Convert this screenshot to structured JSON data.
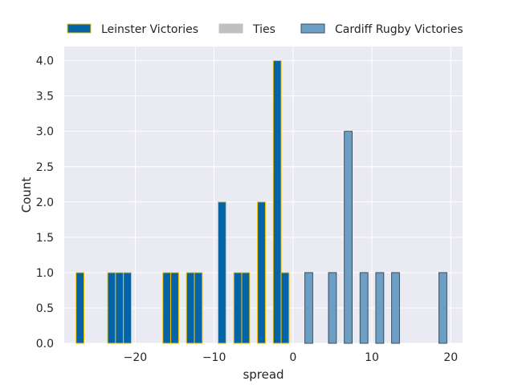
{
  "chart_data": {
    "type": "bar",
    "title": "",
    "xlabel": "spread",
    "ylabel": "Count",
    "xlim": [
      -29,
      21.5
    ],
    "ylim": [
      0,
      4.2
    ],
    "bar_width": 1,
    "grid": true,
    "legend_placement": "top",
    "x_ticks": [
      -20,
      -10,
      0,
      10,
      20
    ],
    "x_tick_labels": [
      "−20",
      "−10",
      "0",
      "10",
      "20"
    ],
    "y_ticks": [
      0,
      0.5,
      1,
      1.5,
      2,
      2.5,
      3,
      3.5,
      4
    ],
    "y_tick_labels": [
      "0.0",
      "0.5",
      "1.0",
      "1.5",
      "2.0",
      "2.5",
      "3.0",
      "3.5",
      "4.0"
    ],
    "series": [
      {
        "name": "Leinster Victories",
        "fill": "#0563a8",
        "edge": "#f2c300",
        "points": [
          {
            "x": -27,
            "y": 1
          },
          {
            "x": -23,
            "y": 1
          },
          {
            "x": -22,
            "y": 1
          },
          {
            "x": -21,
            "y": 1
          },
          {
            "x": -16,
            "y": 1
          },
          {
            "x": -15,
            "y": 1
          },
          {
            "x": -13,
            "y": 1
          },
          {
            "x": -12,
            "y": 1
          },
          {
            "x": -9,
            "y": 2
          },
          {
            "x": -7,
            "y": 1
          },
          {
            "x": -6,
            "y": 1
          },
          {
            "x": -4,
            "y": 2
          },
          {
            "x": -2,
            "y": 4
          },
          {
            "x": -1,
            "y": 1
          }
        ]
      },
      {
        "name": "Ties",
        "fill": "#c0c0c0",
        "edge": "#c0c0c0",
        "points": []
      },
      {
        "name": "Cardiff Rugby Victories",
        "fill": "#6d9fc4",
        "edge": "#3a4f60",
        "points": [
          {
            "x": 2,
            "y": 1
          },
          {
            "x": 5,
            "y": 1
          },
          {
            "x": 7,
            "y": 3
          },
          {
            "x": 9,
            "y": 1
          },
          {
            "x": 11,
            "y": 1
          },
          {
            "x": 13,
            "y": 1
          },
          {
            "x": 19,
            "y": 1
          }
        ]
      }
    ]
  }
}
